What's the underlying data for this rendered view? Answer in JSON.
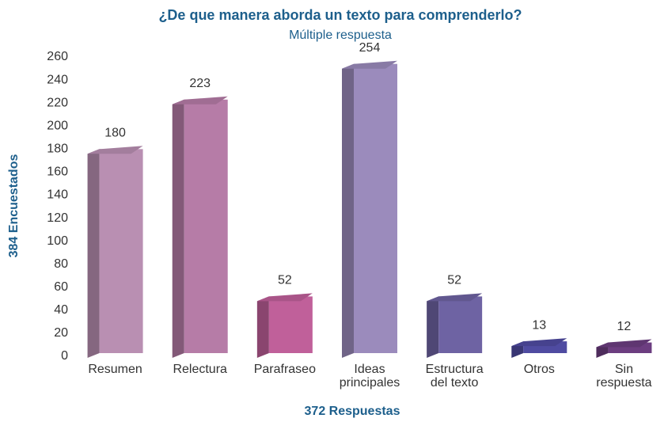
{
  "chart_data": {
    "type": "bar3d",
    "title": "¿De que manera aborda un texto para comprenderlo?",
    "subtitle": "Múltiple respuesta",
    "y_label": "384 Encuestados",
    "x_label": "372 Respuestas",
    "categories": [
      "Resumen",
      "Relectura",
      "Parafraseo",
      "Ideas\nprincipales",
      "Estructura\ndel texto",
      "Otros",
      "Sin\nrespuesta"
    ],
    "values": [
      180,
      223,
      52,
      254,
      52,
      13,
      12
    ],
    "colors": [
      "#b98fb2",
      "#b67ca7",
      "#c0609a",
      "#9b8bbc",
      "#6e63a3",
      "#4f4ba1",
      "#6c3d80"
    ],
    "ylim": [
      0,
      260
    ],
    "yticks": [
      0,
      20,
      40,
      60,
      80,
      100,
      120,
      140,
      160,
      180,
      200,
      220,
      240,
      260
    ]
  }
}
